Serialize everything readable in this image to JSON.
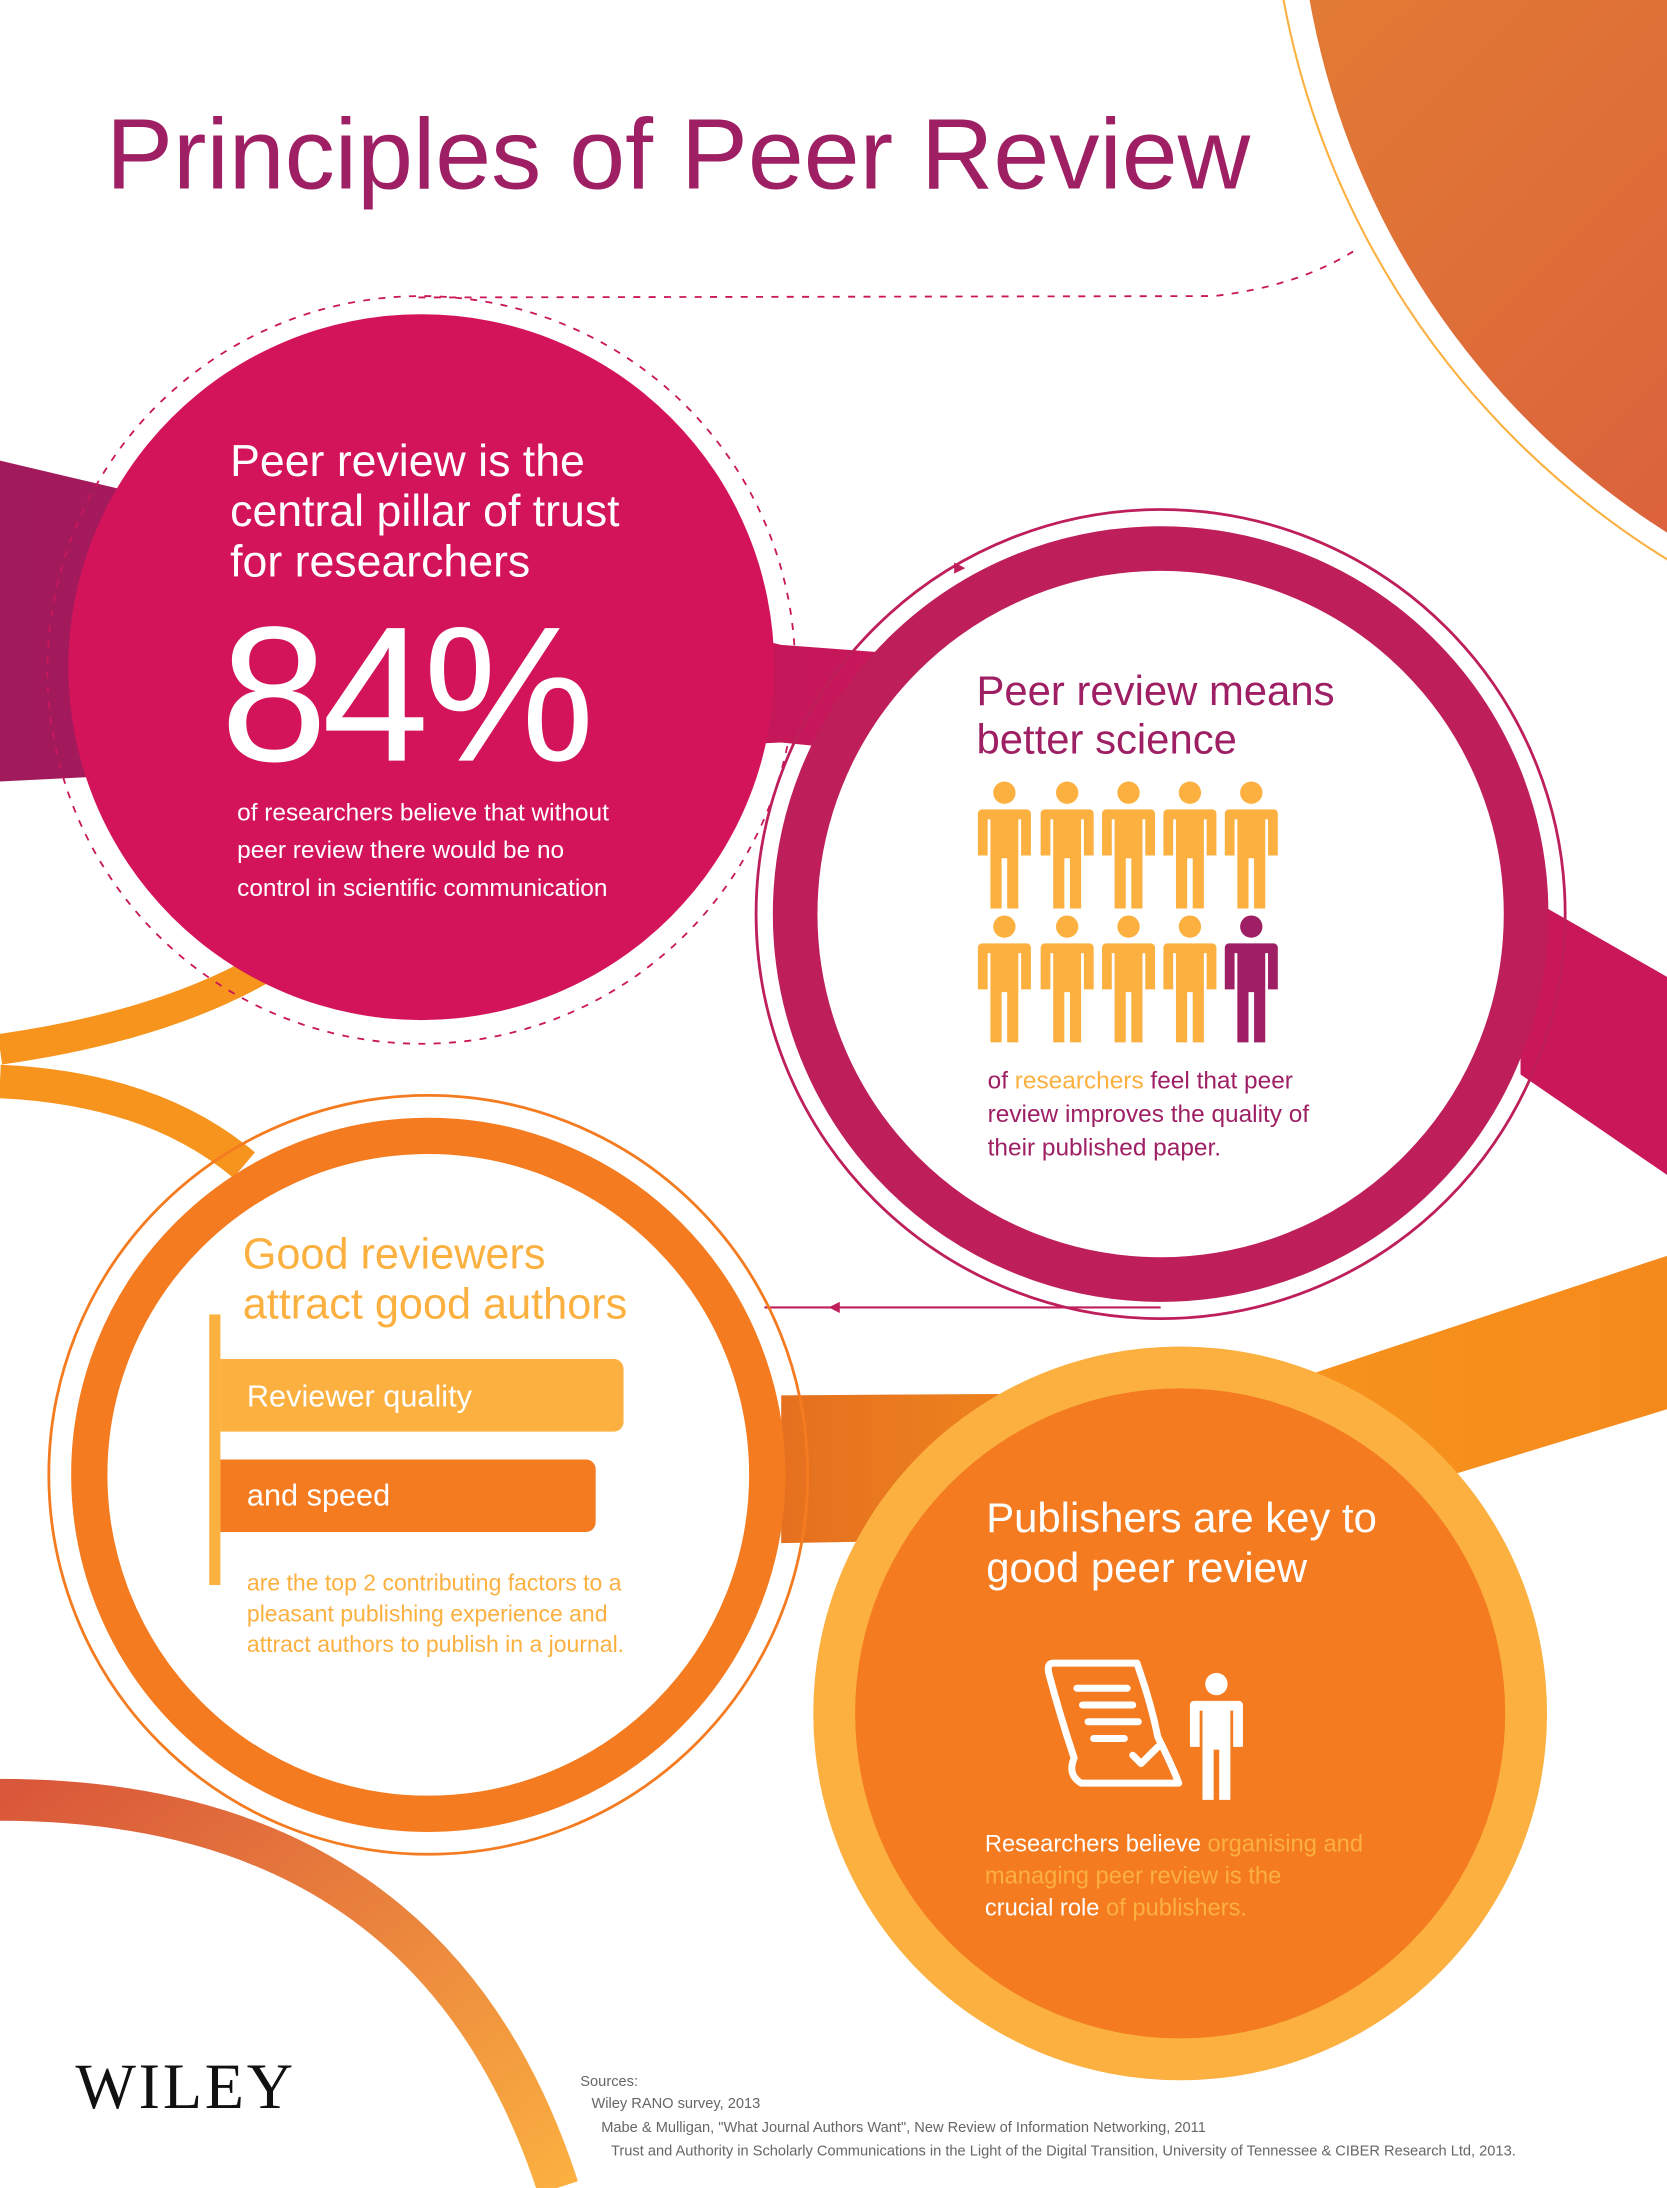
{
  "title": "Principles of Peer Review",
  "colors": {
    "title": "#9e1f63",
    "magenta": "#d4145a",
    "plum": "#be1e5a",
    "orange": "#f47b20",
    "yellow": "#fbb040"
  },
  "trust": {
    "heading": [
      "Peer review is the",
      "central pillar of trust",
      "for researchers"
    ],
    "stat": "84%",
    "body": [
      "of researchers believe that without",
      "peer review there would be no",
      "control in scientific communication"
    ]
  },
  "science": {
    "heading": [
      "Peer review means",
      "better science"
    ],
    "people_icon": "person-icon",
    "people_highlighted": 9,
    "people_total": 10,
    "body": {
      "l1_a": "of ",
      "l1_b": "researchers",
      "l1_c": " feel that peer",
      "l2": "review improves the quality of",
      "l3": "their published paper."
    }
  },
  "reviewers": {
    "heading": [
      "Good reviewers",
      "attract good authors"
    ],
    "bars": [
      "Reviewer quality",
      "and speed"
    ],
    "body": [
      "are the top 2 contributing factors to a",
      "pleasant publishing experience and",
      "attract authors to publish in a journal."
    ]
  },
  "publishers": {
    "heading": [
      "Publishers are key to",
      "good peer review"
    ],
    "icons": [
      "document-scroll-icon",
      "person-icon"
    ],
    "body": {
      "l1_a": "Researchers believe ",
      "l1_b": "organising and",
      "l2": "managing peer review is the",
      "l3_a": "crucial role",
      "l3_b": " of publishers."
    }
  },
  "logo": "WILEY",
  "sources": {
    "label": "Sources:",
    "items": [
      "Wiley RANO survey, 2013",
      "Mabe & Mulligan, \"What Journal Authors Want\", New Review of Information Networking, 2011",
      "Trust and Authority in Scholarly Communications in the Light of the Digital Transition, University of Tennessee & CIBER Research Ltd, 2013."
    ]
  }
}
